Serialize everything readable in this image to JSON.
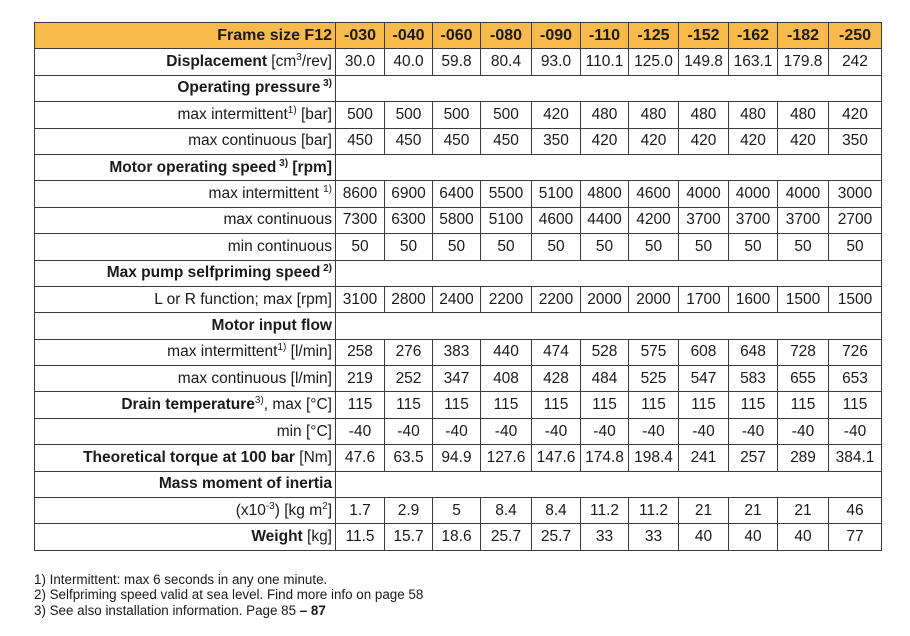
{
  "header": {
    "label": "Frame size F12",
    "sizes": [
      "-030",
      "-040",
      "-060",
      "-080",
      "-090",
      "-110",
      "-125",
      "-152",
      "-162",
      "-182",
      "-250"
    ]
  },
  "rows": [
    {
      "type": "data",
      "parts": [
        {
          "t": "Displacement",
          "b": true
        },
        {
          "t": " [cm"
        },
        {
          "t": "3",
          "sup": true
        },
        {
          "t": "/rev]"
        }
      ],
      "values": [
        "30.0",
        "40.0",
        "59.8",
        "80.4",
        "93.0",
        "110.1",
        "125.0",
        "149.8",
        "163.1",
        "179.8",
        "242"
      ]
    },
    {
      "type": "section",
      "parts": [
        {
          "t": "Operating pressure",
          "b": true
        },
        {
          "t": " 3)",
          "sup": true
        }
      ]
    },
    {
      "type": "data",
      "parts": [
        {
          "t": "max intermittent"
        },
        {
          "t": "1)",
          "sup": true
        },
        {
          "t": " [bar]"
        }
      ],
      "values": [
        "500",
        "500",
        "500",
        "500",
        "420",
        "480",
        "480",
        "480",
        "480",
        "480",
        "420"
      ]
    },
    {
      "type": "data",
      "parts": [
        {
          "t": "max continuous [bar]"
        }
      ],
      "values": [
        "450",
        "450",
        "450",
        "450",
        "350",
        "420",
        "420",
        "420",
        "420",
        "420",
        "350"
      ]
    },
    {
      "type": "section",
      "parts": [
        {
          "t": "Motor operating speed",
          "b": true
        },
        {
          "t": " 3)",
          "sup": true
        },
        {
          "t": " [rpm]"
        }
      ]
    },
    {
      "type": "data",
      "parts": [
        {
          "t": "max intermittent "
        },
        {
          "t": "1)",
          "sup": true
        }
      ],
      "values": [
        "8600",
        "6900",
        "6400",
        "5500",
        "5100",
        "4800",
        "4600",
        "4000",
        "4000",
        "4000",
        "3000"
      ]
    },
    {
      "type": "data",
      "parts": [
        {
          "t": "max continuous"
        }
      ],
      "values": [
        "7300",
        "6300",
        "5800",
        "5100",
        "4600",
        "4400",
        "4200",
        "3700",
        "3700",
        "3700",
        "2700"
      ]
    },
    {
      "type": "data",
      "parts": [
        {
          "t": "min continuous"
        }
      ],
      "values": [
        "50",
        "50",
        "50",
        "50",
        "50",
        "50",
        "50",
        "50",
        "50",
        "50",
        "50"
      ]
    },
    {
      "type": "section",
      "parts": [
        {
          "t": "Max pump selfpriming speed",
          "b": true
        },
        {
          "t": " 2)",
          "sup": true
        }
      ]
    },
    {
      "type": "data",
      "parts": [
        {
          "t": "L or R function; max [rpm]"
        }
      ],
      "values": [
        "3100",
        "2800",
        "2400",
        "2200",
        "2200",
        "2000",
        "2000",
        "1700",
        "1600",
        "1500",
        "1500"
      ]
    },
    {
      "type": "section",
      "parts": [
        {
          "t": "Motor input flow",
          "b": true
        }
      ]
    },
    {
      "type": "data",
      "parts": [
        {
          "t": "max intermittent"
        },
        {
          "t": "1)",
          "sup": true
        },
        {
          "t": " [l/min]"
        }
      ],
      "values": [
        "258",
        "276",
        "383",
        "440",
        "474",
        "528",
        "575",
        "608",
        "648",
        "728",
        "726"
      ]
    },
    {
      "type": "data",
      "parts": [
        {
          "t": "max continuous [l/min]"
        }
      ],
      "values": [
        "219",
        "252",
        "347",
        "408",
        "428",
        "484",
        "525",
        "547",
        "583",
        "655",
        "653"
      ]
    },
    {
      "type": "data",
      "parts": [
        {
          "t": "Drain temperature",
          "b": true
        },
        {
          "t": "3)",
          "sup": true
        },
        {
          "t": ", max [°C]"
        }
      ],
      "values": [
        "115",
        "115",
        "115",
        "115",
        "115",
        "115",
        "115",
        "115",
        "115",
        "115",
        "115"
      ]
    },
    {
      "type": "data",
      "parts": [
        {
          "t": "min [°C]"
        }
      ],
      "values": [
        "-40",
        "-40",
        "-40",
        "-40",
        "-40",
        "-40",
        "-40",
        "-40",
        "-40",
        "-40",
        "-40"
      ]
    },
    {
      "type": "data",
      "parts": [
        {
          "t": "Theoretical torque at 100 bar",
          "b": true
        },
        {
          "t": " [Nm]"
        }
      ],
      "values": [
        "47.6",
        "63.5",
        "94.9",
        "127.6",
        "147.6",
        "174.8",
        "198.4",
        "241",
        "257",
        "289",
        "384.1"
      ]
    },
    {
      "type": "section",
      "parts": [
        {
          "t": "Mass moment of inertia",
          "b": true
        }
      ]
    },
    {
      "type": "data",
      "parts": [
        {
          "t": "(x10"
        },
        {
          "t": "-3",
          "sup": true
        },
        {
          "t": ") [kg m"
        },
        {
          "t": "2",
          "sup": true
        },
        {
          "t": "]"
        }
      ],
      "values": [
        "1.7",
        "2.9",
        "5",
        "8.4",
        "8.4",
        "11.2",
        "11.2",
        "21",
        "21",
        "21",
        "46"
      ]
    },
    {
      "type": "data",
      "parts": [
        {
          "t": "Weight",
          "b": true
        },
        {
          "t": " [kg]"
        }
      ],
      "values": [
        "11.5",
        "15.7",
        "18.6",
        "25.7",
        "25.7",
        "33",
        "33",
        "40",
        "40",
        "40",
        "77"
      ]
    }
  ],
  "footnotes": [
    [
      {
        "t": "1) Intermittent: max 6 seconds in any one minute."
      }
    ],
    [
      {
        "t": "2) Selfpriming speed valid at sea level. Find more info on page 58"
      }
    ],
    [
      {
        "t": "3) See also installation information. Page 85 "
      },
      {
        "t": "– 87",
        "b": true
      }
    ]
  ],
  "colors": {
    "header_bg": "#f8ba4a",
    "border": "#3a3a3a"
  }
}
